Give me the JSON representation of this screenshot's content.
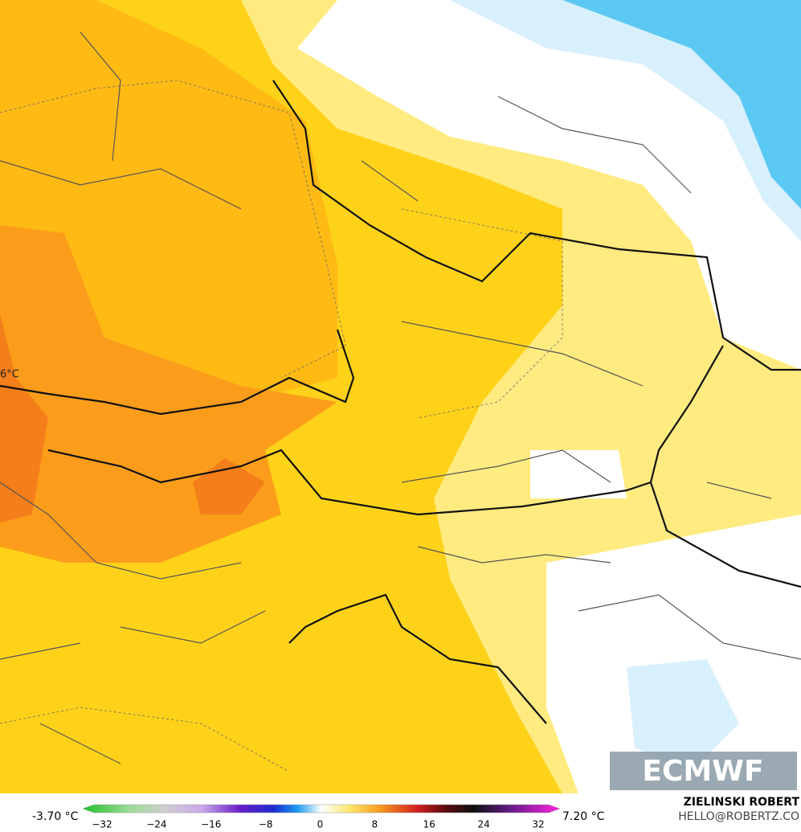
{
  "map": {
    "contour_label": "6°C",
    "logo": "ECMWF",
    "legend": {
      "min_label": "-3.70 °C",
      "max_label": "7.20 °C",
      "ticks": [
        "−32",
        "−24",
        "−16",
        "−8",
        "0",
        "8",
        "16",
        "24",
        "32"
      ]
    },
    "credit": {
      "name": "ZIELINSKI ROBERT",
      "email": "HELLO@ROBERTZ.CO"
    }
  }
}
